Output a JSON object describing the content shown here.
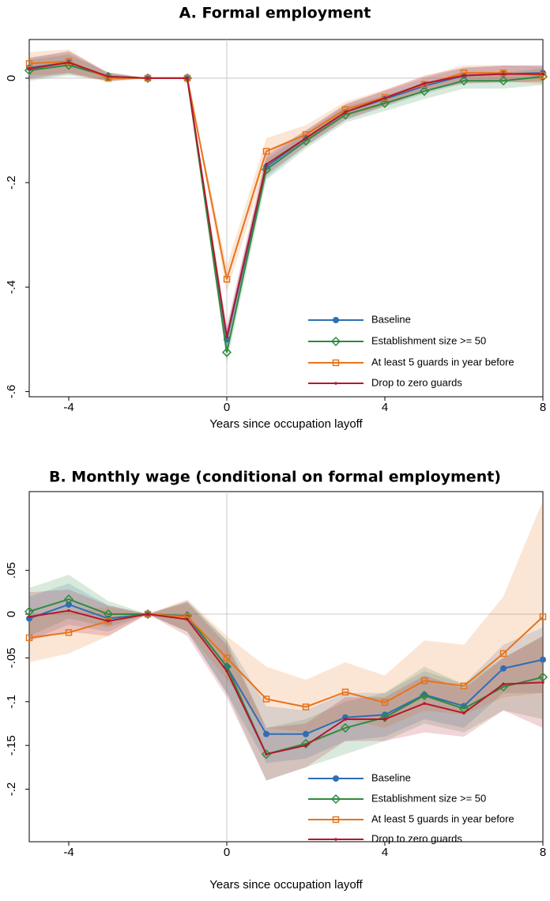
{
  "chart_data": [
    {
      "type": "line",
      "title": "A. Formal employment",
      "xlabel": "Years since occupation layoff",
      "x": [
        -5,
        -4,
        -3,
        -2,
        -1,
        0,
        1,
        2,
        3,
        4,
        5,
        6,
        7,
        8
      ],
      "xlim": [
        -5,
        8
      ],
      "xticks": [
        -4,
        0,
        4,
        8
      ],
      "ylim": [
        -0.61,
        0.074
      ],
      "yticks": [
        {
          "value": 0,
          "label": "0"
        },
        {
          "value": -0.2,
          "label": "-.2"
        },
        {
          "value": -0.4,
          "label": "-.4"
        },
        {
          "value": -0.6,
          "label": "-.6"
        }
      ],
      "xline": 0,
      "yline": 0,
      "legend": "lower right",
      "series": [
        {
          "name": "Baseline",
          "color": "#2f6eb5",
          "marker": "circle",
          "values": [
            0.02,
            0.03,
            0.003,
            0,
            0,
            -0.5,
            -0.17,
            -0.115,
            -0.065,
            -0.04,
            -0.015,
            0.005,
            0.008,
            0.01
          ],
          "lower": [
            0.0,
            0.01,
            -0.005,
            0,
            0,
            -0.52,
            -0.19,
            -0.13,
            -0.08,
            -0.055,
            -0.03,
            -0.01,
            -0.008,
            -0.005
          ],
          "upper": [
            0.04,
            0.05,
            0.01,
            0,
            0,
            -0.48,
            -0.15,
            -0.1,
            -0.05,
            -0.025,
            0.0,
            0.02,
            0.024,
            0.025
          ]
        },
        {
          "name": "Establishment size >= 50",
          "color": "#2e8b3e",
          "marker": "diamond",
          "values": [
            0.015,
            0.025,
            0.003,
            0,
            0,
            -0.525,
            -0.175,
            -0.12,
            -0.07,
            -0.048,
            -0.025,
            -0.005,
            -0.005,
            0.003
          ],
          "lower": [
            -0.005,
            0.005,
            -0.005,
            0,
            0,
            -0.545,
            -0.195,
            -0.135,
            -0.085,
            -0.063,
            -0.04,
            -0.02,
            -0.02,
            -0.013
          ],
          "upper": [
            0.035,
            0.045,
            0.011,
            0,
            0,
            -0.505,
            -0.155,
            -0.105,
            -0.055,
            -0.033,
            -0.01,
            0.01,
            0.01,
            0.019
          ]
        },
        {
          "name": "At least 5 guards in year before",
          "color": "#e8731a",
          "marker": "square",
          "values": [
            0.028,
            0.032,
            0.0,
            0,
            0,
            -0.385,
            -0.14,
            -0.108,
            -0.06,
            -0.037,
            -0.012,
            0.01,
            0.01,
            0.005
          ],
          "lower": [
            0.005,
            0.01,
            -0.008,
            0,
            0,
            -0.41,
            -0.165,
            -0.125,
            -0.075,
            -0.052,
            -0.027,
            -0.005,
            -0.005,
            -0.012
          ],
          "upper": [
            0.05,
            0.055,
            0.008,
            0,
            0,
            -0.36,
            -0.115,
            -0.09,
            -0.045,
            -0.022,
            0.003,
            0.025,
            0.025,
            0.022
          ]
        },
        {
          "name": "Drop to zero guards",
          "color": "#b5172e",
          "marker": "dot",
          "values": [
            0.018,
            0.03,
            0.003,
            0,
            0,
            -0.495,
            -0.165,
            -0.115,
            -0.065,
            -0.038,
            -0.01,
            0.005,
            0.008,
            0.008
          ],
          "lower": [
            -0.002,
            0.008,
            -0.005,
            0,
            0,
            -0.515,
            -0.185,
            -0.13,
            -0.08,
            -0.053,
            -0.025,
            -0.01,
            -0.008,
            -0.008
          ],
          "upper": [
            0.038,
            0.052,
            0.011,
            0,
            0,
            -0.475,
            -0.145,
            -0.1,
            -0.05,
            -0.023,
            0.005,
            0.02,
            0.024,
            0.024
          ]
        }
      ]
    },
    {
      "type": "line",
      "title": "B. Monthly wage (conditional on formal employment)",
      "xlabel": "Years since occupation layoff",
      "x": [
        -5,
        -4,
        -3,
        -2,
        -1,
        0,
        1,
        2,
        3,
        4,
        5,
        6,
        7,
        8
      ],
      "xlim": [
        -5,
        8
      ],
      "xticks": [
        -4,
        0,
        4,
        8
      ],
      "ylim": [
        -0.26,
        0.14
      ],
      "yticks": [
        {
          "value": 0.05,
          "label": ".05"
        },
        {
          "value": 0,
          "label": "0"
        },
        {
          "value": -0.05,
          "label": "-.05"
        },
        {
          "value": -0.1,
          "label": "-.1"
        },
        {
          "value": -0.15,
          "label": "-.15"
        },
        {
          "value": -0.2,
          "label": "-.2"
        }
      ],
      "xline": 0,
      "yline": 0,
      "legend": "lower right",
      "series": [
        {
          "name": "Baseline",
          "color": "#2f6eb5",
          "marker": "circle",
          "values": [
            -0.005,
            0.011,
            -0.005,
            0,
            -0.003,
            -0.06,
            -0.137,
            -0.137,
            -0.118,
            -0.115,
            -0.092,
            -0.105,
            -0.062,
            -0.052
          ],
          "lower": [
            -0.03,
            -0.012,
            -0.02,
            0,
            -0.02,
            -0.09,
            -0.17,
            -0.165,
            -0.145,
            -0.14,
            -0.12,
            -0.13,
            -0.09,
            -0.09
          ],
          "upper": [
            0.02,
            0.035,
            0.01,
            0,
            0.015,
            -0.03,
            -0.105,
            -0.11,
            -0.09,
            -0.09,
            -0.065,
            -0.08,
            -0.035,
            -0.015
          ]
        },
        {
          "name": "Establishment size >= 50",
          "color": "#2e8b3e",
          "marker": "diamond",
          "values": [
            0.003,
            0.017,
            0,
            0,
            -0.002,
            -0.06,
            -0.16,
            -0.148,
            -0.13,
            -0.118,
            -0.093,
            -0.108,
            -0.083,
            -0.072
          ],
          "lower": [
            -0.025,
            -0.005,
            -0.015,
            0,
            -0.02,
            -0.09,
            -0.19,
            -0.175,
            -0.16,
            -0.145,
            -0.125,
            -0.135,
            -0.11,
            -0.12
          ],
          "upper": [
            0.03,
            0.045,
            0.015,
            0,
            0.015,
            -0.03,
            -0.13,
            -0.12,
            -0.1,
            -0.09,
            -0.06,
            -0.08,
            -0.05,
            -0.025
          ]
        },
        {
          "name": "At least 5 guards in year before",
          "color": "#e8731a",
          "marker": "square",
          "values": [
            -0.027,
            -0.021,
            -0.008,
            0,
            -0.003,
            -0.05,
            -0.097,
            -0.106,
            -0.089,
            -0.101,
            -0.076,
            -0.082,
            -0.045,
            -0.003
          ],
          "lower": [
            -0.055,
            -0.045,
            -0.025,
            0,
            -0.02,
            -0.075,
            -0.13,
            -0.135,
            -0.12,
            -0.13,
            -0.11,
            -0.115,
            -0.095,
            -0.09
          ],
          "upper": [
            0.0,
            0.003,
            0.008,
            0,
            0.017,
            -0.025,
            -0.06,
            -0.075,
            -0.055,
            -0.07,
            -0.03,
            -0.035,
            0.02,
            0.13
          ]
        },
        {
          "name": "Drop to zero guards",
          "color": "#b5172e",
          "marker": "dot",
          "values": [
            -0.003,
            0.004,
            -0.008,
            0,
            -0.006,
            -0.065,
            -0.16,
            -0.15,
            -0.12,
            -0.12,
            -0.102,
            -0.113,
            -0.08,
            -0.078
          ],
          "lower": [
            -0.03,
            -0.02,
            -0.025,
            0,
            -0.025,
            -0.095,
            -0.19,
            -0.175,
            -0.145,
            -0.145,
            -0.135,
            -0.14,
            -0.11,
            -0.13
          ],
          "upper": [
            0.025,
            0.028,
            0.01,
            0,
            0.013,
            -0.035,
            -0.13,
            -0.125,
            -0.095,
            -0.095,
            -0.07,
            -0.085,
            -0.05,
            -0.025
          ]
        }
      ]
    }
  ]
}
